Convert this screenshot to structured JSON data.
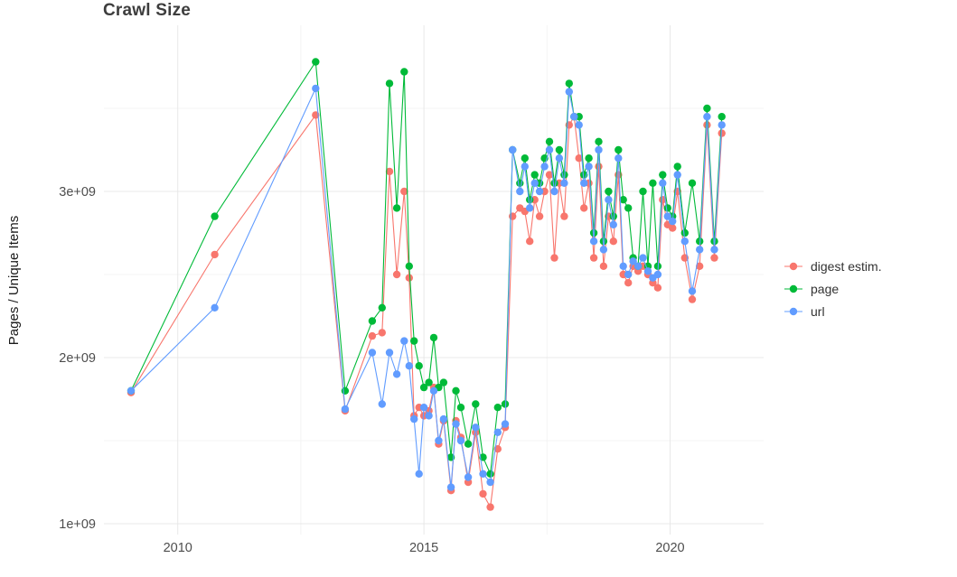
{
  "chart_data": {
    "type": "line",
    "title": "Crawl Size",
    "xlabel": "",
    "ylabel": "Pages / Unique Items",
    "legend_position": "right",
    "grid": true,
    "point_markers": true,
    "x_axis": {
      "lim": [
        2008.5,
        2021.9
      ],
      "ticks": [
        {
          "v": 2010,
          "label": "2010"
        },
        {
          "v": 2015,
          "label": "2015"
        },
        {
          "v": 2020,
          "label": "2020"
        }
      ],
      "minor": [
        2012.5,
        2017.5
      ]
    },
    "y_axis": {
      "unit": "billions (1e9) of pages / unique items",
      "lim": [
        0.935,
        4.0
      ],
      "ticks": [
        {
          "v": 1,
          "label": "1e+09"
        },
        {
          "v": 2,
          "label": "2e+09"
        },
        {
          "v": 3,
          "label": "3e+09"
        }
      ],
      "minor": [
        1.5,
        2.5,
        3.5
      ]
    },
    "x": [
      2009.05,
      2010.75,
      2012.8,
      2013.4,
      2013.95,
      2014.15,
      2014.3,
      2014.45,
      2014.6,
      2014.7,
      2014.8,
      2014.9,
      2015.0,
      2015.1,
      2015.2,
      2015.3,
      2015.4,
      2015.55,
      2015.65,
      2015.75,
      2015.9,
      2016.05,
      2016.2,
      2016.35,
      2016.5,
      2016.65,
      2016.8,
      2016.95,
      2017.05,
      2017.15,
      2017.25,
      2017.35,
      2017.45,
      2017.55,
      2017.65,
      2017.75,
      2017.85,
      2017.95,
      2018.05,
      2018.15,
      2018.25,
      2018.35,
      2018.45,
      2018.55,
      2018.65,
      2018.75,
      2018.85,
      2018.95,
      2019.05,
      2019.15,
      2019.25,
      2019.35,
      2019.45,
      2019.55,
      2019.65,
      2019.75,
      2019.85,
      2019.95,
      2020.05,
      2020.15,
      2020.3,
      2020.45,
      2020.6,
      2020.75,
      2020.9,
      2021.05
    ],
    "series": [
      {
        "name": "digest estim.",
        "color": "#F8766D",
        "values_billions": [
          1.79,
          2.62,
          3.46,
          1.68,
          2.13,
          2.15,
          3.12,
          2.5,
          3.0,
          2.48,
          1.65,
          1.7,
          1.65,
          1.68,
          1.82,
          1.48,
          1.62,
          1.2,
          1.62,
          1.52,
          1.25,
          1.55,
          1.18,
          1.1,
          1.45,
          1.58,
          2.85,
          2.9,
          2.88,
          2.7,
          2.95,
          2.85,
          3.0,
          3.1,
          2.6,
          3.05,
          2.85,
          3.4,
          3.45,
          3.2,
          2.9,
          3.05,
          2.6,
          3.15,
          2.55,
          2.85,
          2.7,
          3.1,
          2.5,
          2.45,
          2.55,
          2.52,
          2.55,
          2.5,
          2.45,
          2.42,
          2.95,
          2.8,
          2.78,
          3.0,
          2.6,
          2.35,
          2.55,
          3.4,
          2.6,
          3.35
        ]
      },
      {
        "name": "page",
        "color": "#00BA38",
        "values_billions": [
          1.8,
          2.85,
          3.78,
          1.8,
          2.22,
          2.3,
          3.65,
          2.9,
          3.72,
          2.55,
          2.1,
          1.95,
          1.82,
          1.85,
          2.12,
          1.82,
          1.85,
          1.4,
          1.8,
          1.7,
          1.48,
          1.72,
          1.4,
          1.3,
          1.7,
          1.72,
          3.25,
          3.05,
          3.2,
          2.95,
          3.1,
          3.05,
          3.2,
          3.3,
          3.05,
          3.25,
          3.1,
          3.65,
          3.45,
          3.45,
          3.1,
          3.2,
          2.75,
          3.3,
          2.7,
          3.0,
          2.85,
          3.25,
          2.95,
          2.9,
          2.6,
          2.55,
          3.0,
          2.55,
          3.05,
          2.55,
          3.1,
          2.9,
          2.85,
          3.15,
          2.75,
          3.05,
          2.7,
          3.5,
          2.7,
          3.45
        ]
      },
      {
        "name": "url",
        "color": "#619CFF",
        "values_billions": [
          1.8,
          2.3,
          3.62,
          1.69,
          2.03,
          1.72,
          2.03,
          1.9,
          2.1,
          1.95,
          1.63,
          1.3,
          1.7,
          1.65,
          1.8,
          1.5,
          1.63,
          1.22,
          1.6,
          1.5,
          1.28,
          1.58,
          1.3,
          1.25,
          1.55,
          1.6,
          3.25,
          3.0,
          3.15,
          2.9,
          3.05,
          3.0,
          3.15,
          3.25,
          3.0,
          3.2,
          3.05,
          3.6,
          3.45,
          3.4,
          3.05,
          3.15,
          2.7,
          3.25,
          2.65,
          2.95,
          2.8,
          3.2,
          2.55,
          2.5,
          2.58,
          2.55,
          2.6,
          2.52,
          2.48,
          2.5,
          3.05,
          2.85,
          2.82,
          3.1,
          2.7,
          2.4,
          2.65,
          3.45,
          2.65,
          3.4
        ]
      }
    ]
  }
}
